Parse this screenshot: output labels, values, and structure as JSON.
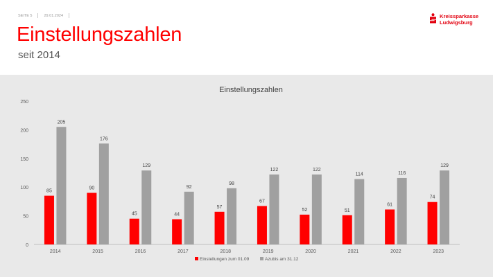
{
  "slide": {
    "page_label": "SEITE 5",
    "date": "29.01.2024",
    "title": "Einstellungszahlen",
    "subtitle": "seit 2014"
  },
  "logo": {
    "icon": "sparkasse-s-icon",
    "line1": "Kreissparkasse",
    "line2": "Ludwigsburg",
    "color": "#e2000f"
  },
  "chart_data": {
    "type": "bar",
    "title": "Einstellungszahlen",
    "categories": [
      "2014",
      "2015",
      "2016",
      "2017",
      "2018",
      "2019",
      "2020",
      "2021",
      "2022",
      "2023"
    ],
    "series": [
      {
        "name": "Einstellungen zum 01.09",
        "color": "#ff0000",
        "values": [
          85,
          90,
          45,
          44,
          57,
          67,
          52,
          51,
          61,
          74
        ]
      },
      {
        "name": "Azubis am 31.12",
        "color": "#a0a0a0",
        "values": [
          205,
          176,
          129,
          92,
          98,
          122,
          122,
          114,
          116,
          129
        ]
      }
    ],
    "ylim": [
      0,
      250
    ],
    "yticks": [
      0,
      50,
      100,
      150,
      200,
      250
    ],
    "grid": false,
    "data_labels": true,
    "legend": "bottom-center"
  }
}
